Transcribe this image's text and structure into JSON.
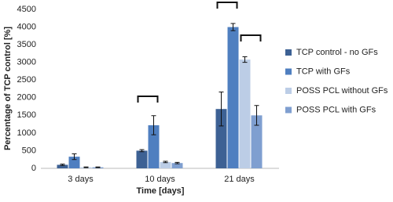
{
  "chart_data": {
    "type": "bar",
    "x_label": "Time [days]",
    "y_label": "Percentage of TCP control [%]",
    "categories": [
      "3 days",
      "10 days",
      "21 days"
    ],
    "series": [
      {
        "name": "TCP control - no GFs",
        "color": "#3d6194",
        "values": [
          100,
          500,
          1680
        ],
        "errors": [
          20,
          30,
          480
        ]
      },
      {
        "name": "TCP with GFs",
        "color": "#4f7fc0",
        "values": [
          330,
          1220,
          4000
        ],
        "errors": [
          80,
          270,
          100
        ]
      },
      {
        "name": "POSS PCL without GFs",
        "color": "#bccde6",
        "values": [
          30,
          180,
          3080
        ],
        "errors": [
          10,
          20,
          80
        ]
      },
      {
        "name": "POSS PCL with GFs",
        "color": "#7f9fd0",
        "values": [
          30,
          150,
          1500
        ],
        "errors": [
          10,
          20,
          280
        ]
      }
    ],
    "ylim": [
      0,
      4500
    ],
    "yticks": [
      0,
      500,
      1000,
      1500,
      2000,
      2500,
      3000,
      3500,
      4000,
      4500
    ],
    "grid": false
  }
}
